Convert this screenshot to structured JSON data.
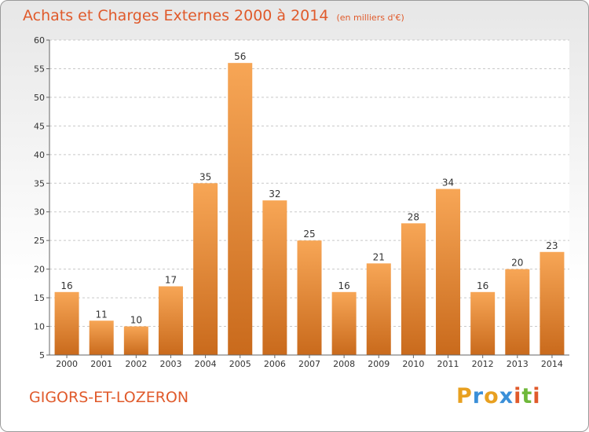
{
  "title": "Achats et Charges Externes 2000 à 2014",
  "unit": "(en milliers d'€)",
  "commune": "GIGORS-ET-LOZERON",
  "brand": {
    "letters": [
      "P",
      "r",
      "o",
      "x",
      "i",
      "t",
      "i"
    ],
    "colors": [
      "#e8a020",
      "#3a8fd8",
      "#e8a020",
      "#3a8fd8",
      "#e05a2b",
      "#6fb83a",
      "#e05a2b"
    ]
  },
  "colors": {
    "bar_light": "#f7a656",
    "bar_dark": "#c96a1c",
    "title": "#e05a2b",
    "grid": "#c8c8c8",
    "axis": "#666666"
  },
  "chart_data": {
    "type": "bar",
    "categories": [
      "2000",
      "2001",
      "2002",
      "2003",
      "2004",
      "2005",
      "2006",
      "2007",
      "2008",
      "2009",
      "2010",
      "2011",
      "2012",
      "2013",
      "2014"
    ],
    "values": [
      16,
      11,
      10,
      17,
      35,
      56,
      32,
      25,
      16,
      21,
      28,
      34,
      16,
      20,
      23
    ],
    "yticks": [
      5,
      10,
      15,
      20,
      25,
      30,
      35,
      40,
      45,
      50,
      55,
      60
    ],
    "ylim": [
      5,
      60
    ],
    "grid": true,
    "title": "Achats et Charges Externes 2000 à 2014",
    "xlabel": "",
    "ylabel": ""
  }
}
